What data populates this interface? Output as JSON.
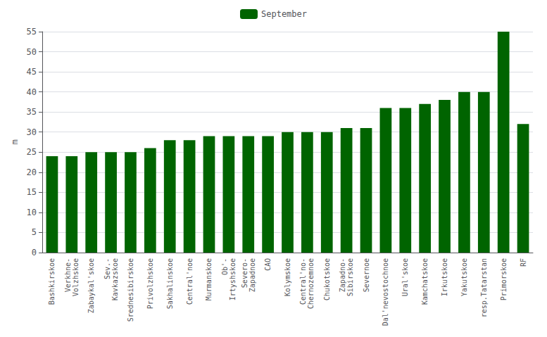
{
  "chart_data": {
    "type": "bar",
    "categories": [
      "Bashkirskoe",
      "Verkhne-\nVolzhskoe",
      "Zabaykal'skoe",
      "Sev.-\nKavkazskoe",
      "Srednesibirskoe",
      "Privolzhskoe",
      "Sakhalinskoe",
      "Central'noe",
      "Murmanskoe",
      "Ob'-\nIrtyshskoe",
      "Severo-\nZapadnoe",
      "CAO",
      "Kolymskoe",
      "Central'no-\nChernozemnoe",
      "Chukotskoe",
      "Zapadno-\nSibirskoe",
      "Severnoe",
      "Dal'nevostochnoe",
      "Ural'skoe",
      "Kamchatskoe",
      "Irkutskoe",
      "Yakutskoe",
      "resp.Tatarstan",
      "Primorskoe",
      "RF"
    ],
    "series": [
      {
        "name": "September",
        "color": "#006400",
        "values": [
          24,
          24,
          25,
          25,
          25,
          26,
          28,
          28,
          29,
          29,
          29,
          29,
          30,
          30,
          30,
          31,
          31,
          36,
          36,
          37,
          38,
          40,
          40,
          55,
          32
        ]
      }
    ],
    "ylabel": "m",
    "ylim": [
      0,
      55
    ],
    "yticks": [
      0,
      5,
      10,
      15,
      20,
      25,
      30,
      35,
      40,
      45,
      50,
      55
    ],
    "grid": true,
    "legend": "top"
  }
}
